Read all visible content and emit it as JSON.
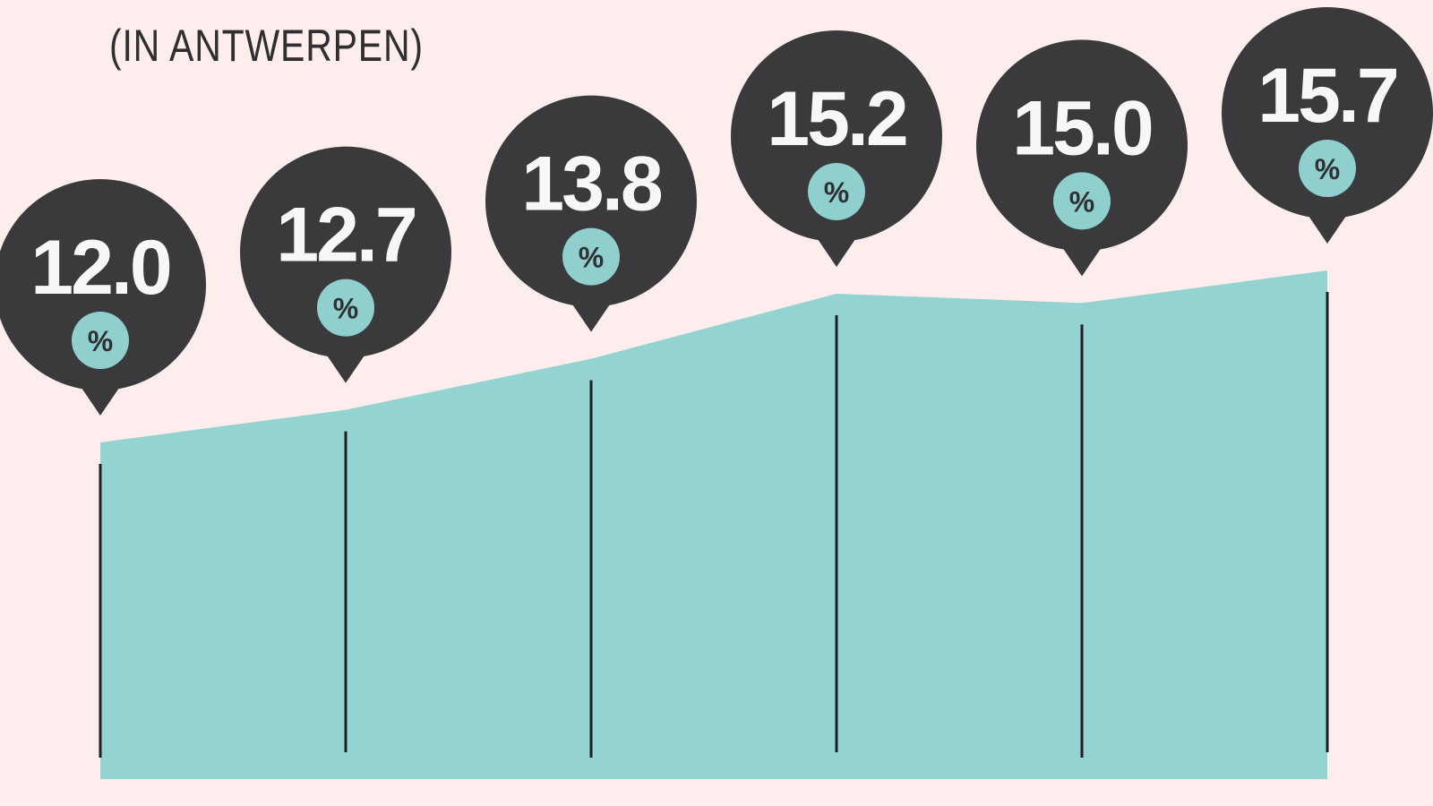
{
  "colors": {
    "background": "#fdeeed",
    "area": "#93d3d2",
    "pin": "#3a3a3c",
    "pin_text": "#f7f7f7",
    "badge": "#8fd0cf",
    "badge_text": "#2f3032",
    "divider": "#1f1f21"
  },
  "chart_data": {
    "type": "area",
    "title": "",
    "subtitle": "(IN ANTWERPEN)",
    "xlabel": "",
    "ylabel": "",
    "unit": "%",
    "ylim": [
      0,
      16
    ],
    "grid": false,
    "series": [
      {
        "values": [
          12.0,
          12.7,
          13.8,
          15.2,
          15.0,
          15.7
        ],
        "labels": [
          "12.0",
          "12.7",
          "13.8",
          "15.2",
          "15.0",
          "15.7"
        ]
      }
    ]
  }
}
